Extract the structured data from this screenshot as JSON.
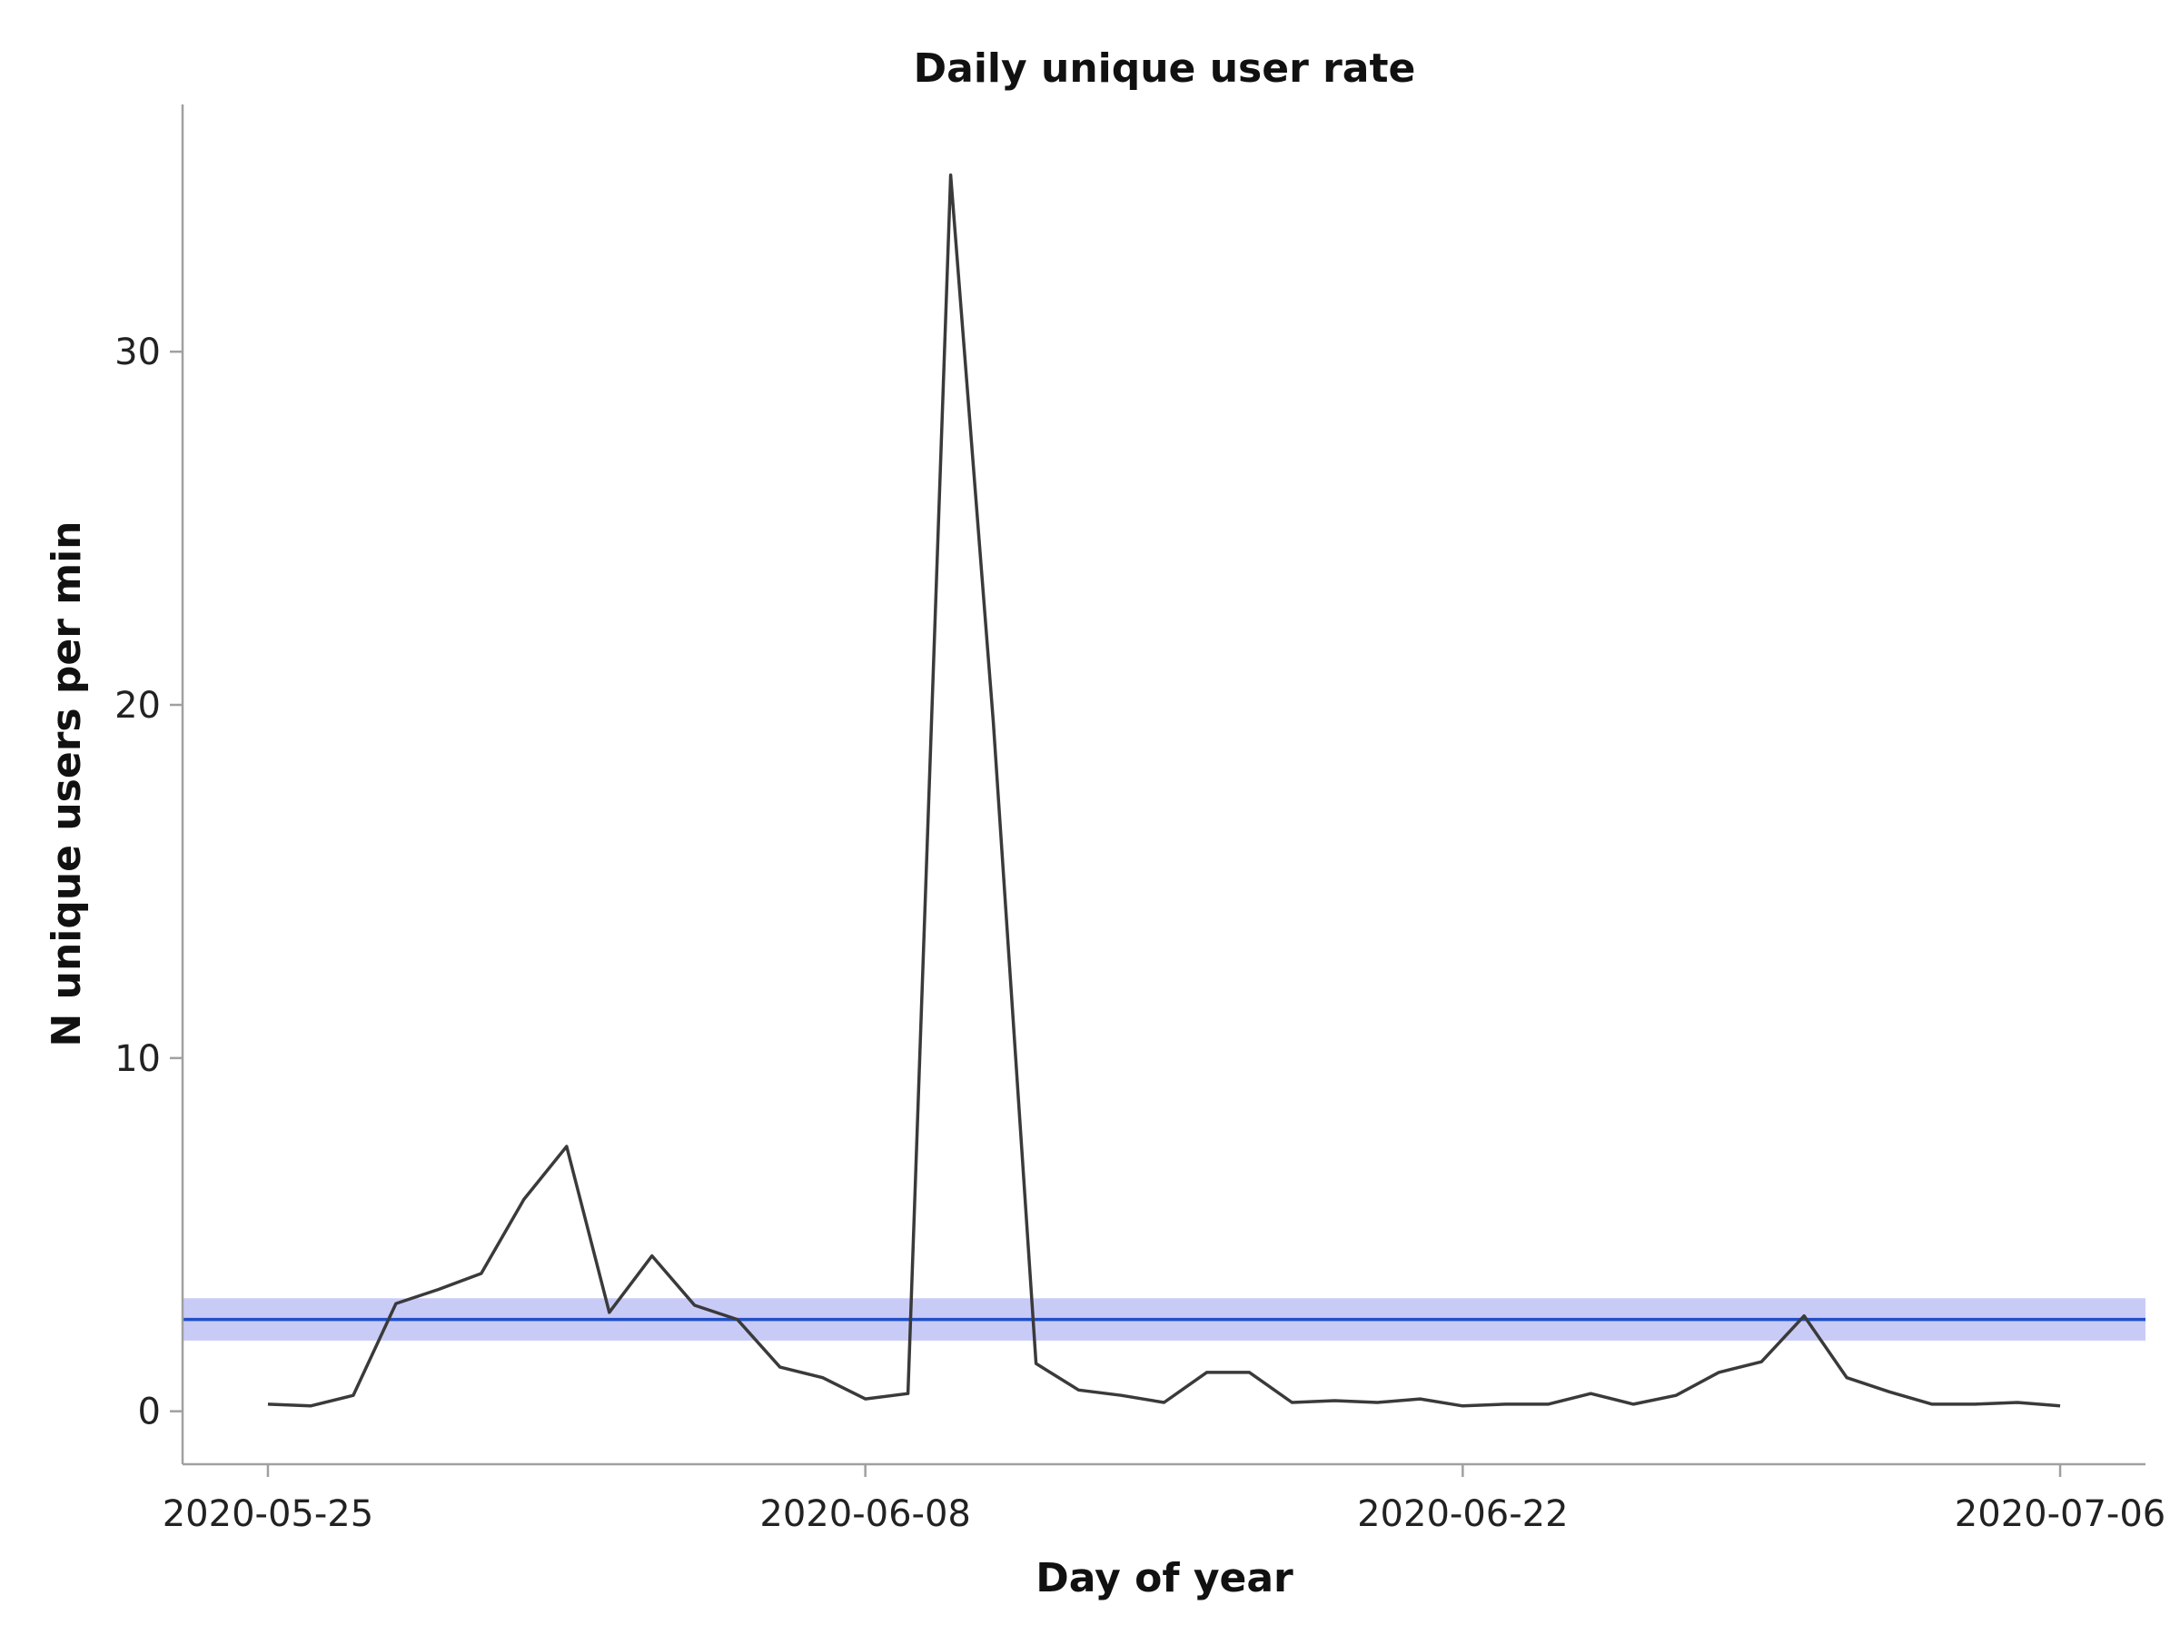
{
  "chart_data": {
    "type": "line",
    "title": "Daily unique user rate",
    "xlabel": "Day of year",
    "ylabel": "N unique users per min",
    "x_type": "date",
    "xlim": [
      "2020-05-23",
      "2020-07-08"
    ],
    "ylim": [
      -1.5,
      37
    ],
    "x_ticks": [
      "2020-05-25",
      "2020-06-08",
      "2020-06-22",
      "2020-07-06"
    ],
    "y_ticks": [
      0,
      10,
      20,
      30
    ],
    "grid": false,
    "legend": "none",
    "colors": {
      "line": "#3a3a3a",
      "reference_line": "#1f4fc9",
      "band": "#c9cbf7",
      "axis": "#a0a0a0"
    },
    "series": [
      {
        "x": [
          "2020-05-25",
          "2020-05-26",
          "2020-05-27",
          "2020-05-28",
          "2020-05-29",
          "2020-05-30",
          "2020-05-31",
          "2020-06-01",
          "2020-06-02",
          "2020-06-03",
          "2020-06-04",
          "2020-06-05",
          "2020-06-06",
          "2020-06-07",
          "2020-06-08",
          "2020-06-09",
          "2020-06-10",
          "2020-06-11",
          "2020-06-12",
          "2020-06-13",
          "2020-06-14",
          "2020-06-15",
          "2020-06-16",
          "2020-06-17",
          "2020-06-18",
          "2020-06-19",
          "2020-06-20",
          "2020-06-21",
          "2020-06-22",
          "2020-06-23",
          "2020-06-24",
          "2020-06-25",
          "2020-06-26",
          "2020-06-27",
          "2020-06-28",
          "2020-06-29",
          "2020-06-30",
          "2020-07-01",
          "2020-07-02",
          "2020-07-03",
          "2020-07-04",
          "2020-07-05",
          "2020-07-06"
        ],
        "values": [
          0.2,
          0.15,
          0.45,
          3.05,
          3.45,
          3.9,
          6.0,
          7.5,
          2.8,
          4.4,
          3.0,
          2.6,
          1.25,
          0.95,
          0.35,
          0.5,
          35.0,
          19.5,
          1.35,
          0.6,
          0.45,
          0.25,
          1.1,
          1.1,
          0.25,
          0.3,
          0.25,
          0.35,
          0.15,
          0.2,
          0.2,
          0.5,
          0.2,
          0.45,
          1.1,
          1.4,
          2.7,
          0.95,
          0.55,
          0.2,
          0.2,
          0.25,
          0.15
        ]
      }
    ],
    "reference_line": {
      "value": 2.6,
      "band": [
        2.0,
        3.2
      ]
    }
  }
}
